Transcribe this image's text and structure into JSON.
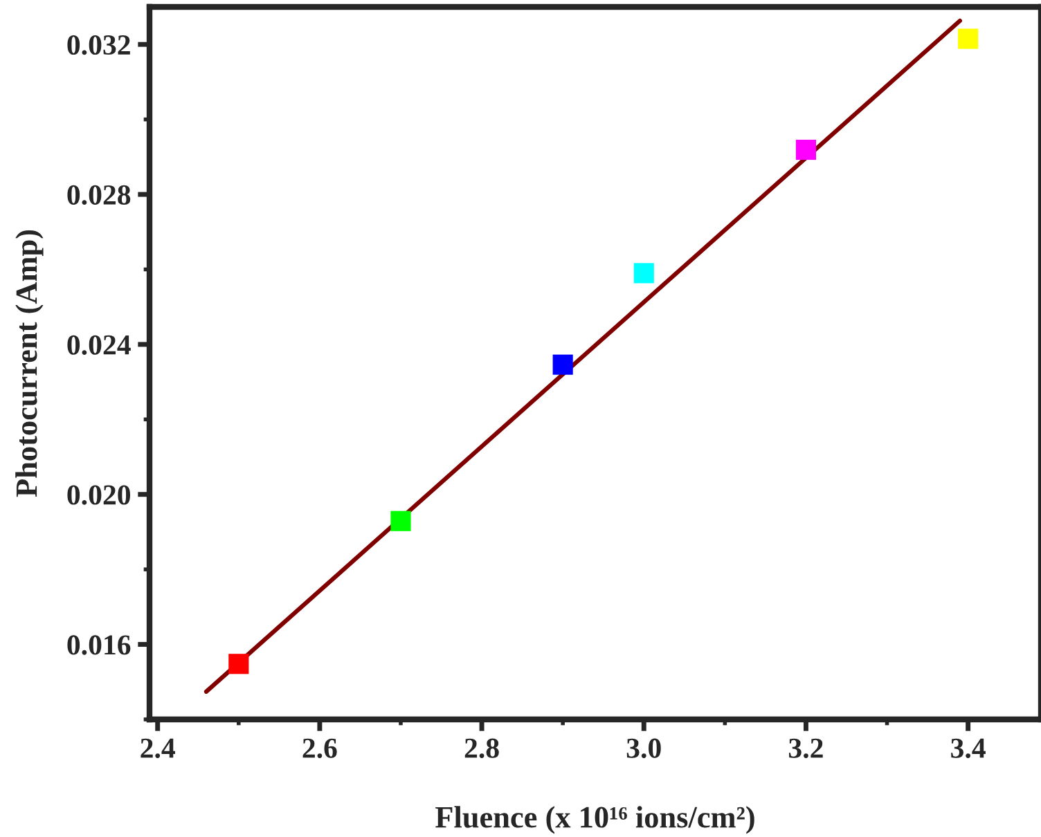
{
  "chart_data": {
    "type": "scatter",
    "xlabel": "Fluence (x 10¹⁶ ions/cm²)",
    "ylabel": "Photocurrent (Amp)",
    "x": [
      2.5,
      2.7,
      2.9,
      3.0,
      3.2,
      3.4
    ],
    "series": [
      {
        "values": [
          0.01548,
          0.01929,
          0.02346,
          0.0259,
          0.02919,
          0.03215
        ],
        "colors": [
          "#ff0000",
          "#00ff00",
          "#0000ff",
          "#00ffff",
          "#ff00ff",
          "#ffff00"
        ],
        "marker": "square"
      },
      {
        "type": "line",
        "x": [
          2.46,
          3.39
        ],
        "values": [
          0.01474,
          0.03263
        ],
        "color": "#800000",
        "marker": "none",
        "line_style": "solid"
      }
    ],
    "xlim": [
      2.39,
      3.49
    ],
    "ylim": [
      0.014,
      0.033
    ],
    "xticks": [
      {
        "value": 2.4,
        "label": "2.4"
      },
      {
        "value": 2.6,
        "label": "2.6"
      },
      {
        "value": 2.8,
        "label": "2.8"
      },
      {
        "value": 3.0,
        "label": "3.0"
      },
      {
        "value": 3.2,
        "label": "3.2"
      },
      {
        "value": 3.4,
        "label": "3.4"
      }
    ],
    "yticks": [
      {
        "value": 0.016,
        "label": "0.016"
      },
      {
        "value": 0.02,
        "label": "0.020"
      },
      {
        "value": 0.024,
        "label": "0.024"
      },
      {
        "value": 0.028,
        "label": "0.028"
      },
      {
        "value": 0.032,
        "label": "0.032"
      }
    ],
    "grid": false,
    "legend": false
  }
}
